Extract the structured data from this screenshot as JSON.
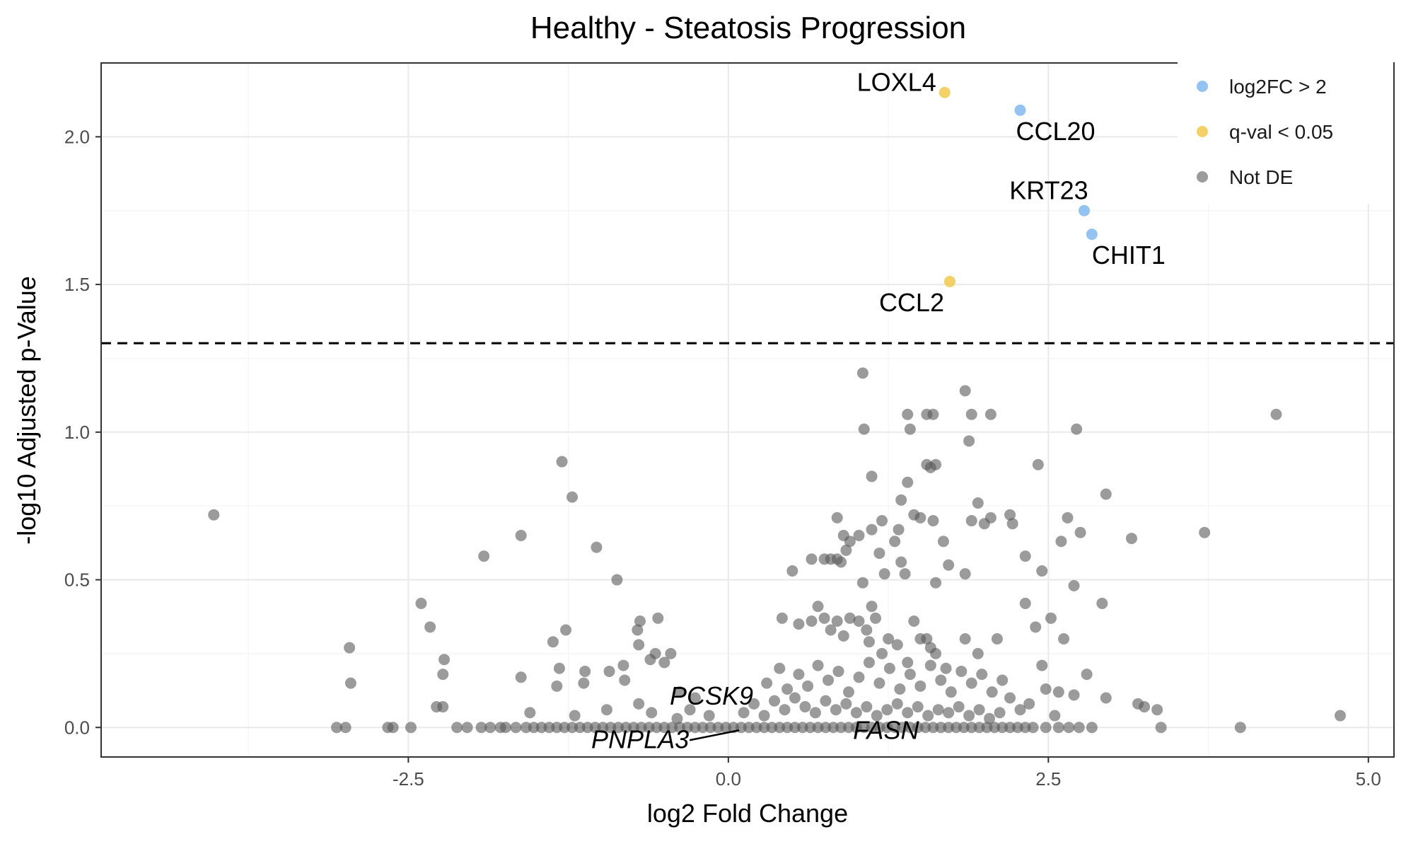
{
  "chart_data": {
    "type": "scatter",
    "title": "Healthy - Steatosis Progression",
    "xlabel": "log2 Fold Change",
    "ylabel": "-log10 Adjusted p-Value",
    "xlim": [
      -4.9,
      5.2
    ],
    "ylim": [
      -0.1,
      2.25
    ],
    "xticks": [
      -2.5,
      0.0,
      2.5,
      5.0
    ],
    "xtick_labels": [
      "-2.5",
      "0.0",
      "2.5",
      "5.0"
    ],
    "yticks": [
      0.0,
      0.5,
      1.0,
      1.5,
      2.0
    ],
    "ytick_labels": [
      "0.0",
      "0.5",
      "1.0",
      "1.5",
      "2.0"
    ],
    "threshold_line": {
      "y": 1.301,
      "style": "dashed"
    },
    "grid": true,
    "legend_position": "top-right",
    "colors": {
      "log2FC > 2": "#7fb8f0",
      "q-val < 0.05": "#f2c94c",
      "Not DE": "#595959"
    },
    "series": [
      {
        "name": "log2FC > 2",
        "points": [
          {
            "x": 2.28,
            "y": 2.09,
            "label": "CCL20"
          },
          {
            "x": 2.78,
            "y": 1.75,
            "label": "KRT23"
          },
          {
            "x": 2.84,
            "y": 1.67,
            "label": "CHIT1"
          }
        ]
      },
      {
        "name": "q-val < 0.05",
        "points": [
          {
            "x": 1.69,
            "y": 2.15,
            "label": "LOXL4"
          },
          {
            "x": 1.73,
            "y": 1.51,
            "label": "CCL2"
          }
        ]
      },
      {
        "name": "Not DE",
        "points": [
          [
            -4.02,
            0.72
          ],
          [
            -2.96,
            0.27
          ],
          [
            -2.95,
            0.15
          ],
          [
            -2.4,
            0.42
          ],
          [
            -2.33,
            0.34
          ],
          [
            -2.22,
            0.23
          ],
          [
            -2.23,
            0.18
          ],
          [
            -2.28,
            0.07
          ],
          [
            -2.23,
            0.07
          ],
          [
            -1.91,
            0.58
          ],
          [
            -1.62,
            0.65
          ],
          [
            -1.62,
            0.17
          ],
          [
            -1.3,
            0.9
          ],
          [
            -1.22,
            0.78
          ],
          [
            -1.37,
            0.29
          ],
          [
            -1.27,
            0.33
          ],
          [
            -1.32,
            0.2
          ],
          [
            -1.34,
            0.14
          ],
          [
            -1.03,
            0.61
          ],
          [
            -0.87,
            0.5
          ],
          [
            -1.12,
            0.19
          ],
          [
            -1.13,
            0.15
          ],
          [
            -0.93,
            0.19
          ],
          [
            -0.82,
            0.21
          ],
          [
            -0.81,
            0.16
          ],
          [
            -0.69,
            0.36
          ],
          [
            -0.71,
            0.33
          ],
          [
            -0.7,
            0.28
          ],
          [
            -0.55,
            0.37
          ],
          [
            -0.57,
            0.25
          ],
          [
            -0.61,
            0.23
          ],
          [
            -0.5,
            0.22
          ],
          [
            -0.45,
            0.25
          ],
          [
            -0.38,
            0.12
          ],
          [
            -0.26,
            0.1
          ],
          [
            -3.06,
            0.0
          ],
          [
            -2.99,
            0.0
          ],
          [
            -2.66,
            0.0
          ],
          [
            -2.62,
            0.0
          ],
          [
            -2.48,
            0.0
          ],
          [
            -2.12,
            0.0
          ],
          [
            -2.04,
            0.0
          ],
          [
            -1.93,
            0.0
          ],
          [
            -1.86,
            0.0
          ],
          [
            -1.78,
            0.0
          ],
          [
            -1.74,
            0.0
          ],
          [
            -1.66,
            0.0
          ],
          [
            -1.58,
            0.0
          ],
          [
            -1.52,
            0.0
          ],
          [
            -1.46,
            0.0
          ],
          [
            -1.4,
            0.0
          ],
          [
            -1.34,
            0.0
          ],
          [
            -1.28,
            0.0
          ],
          [
            -1.22,
            0.0
          ],
          [
            -1.16,
            0.0
          ],
          [
            -1.1,
            0.0
          ],
          [
            -1.04,
            0.0
          ],
          [
            -0.98,
            0.0
          ],
          [
            -0.92,
            0.0
          ],
          [
            -0.86,
            0.0
          ],
          [
            -0.8,
            0.0
          ],
          [
            -0.74,
            0.0
          ],
          [
            -0.68,
            0.0
          ],
          [
            -0.62,
            0.0
          ],
          [
            -0.56,
            0.0
          ],
          [
            -0.5,
            0.0
          ],
          [
            -0.44,
            0.0
          ],
          [
            -0.38,
            0.0
          ],
          [
            -0.32,
            0.0
          ],
          [
            -0.26,
            0.0
          ],
          [
            -0.2,
            0.0
          ],
          [
            -0.14,
            0.0
          ],
          [
            -0.08,
            0.0
          ],
          [
            -0.02,
            0.0
          ],
          [
            -1.55,
            0.05
          ],
          [
            -1.2,
            0.04
          ],
          [
            -0.95,
            0.06
          ],
          [
            -0.7,
            0.08
          ],
          [
            -0.6,
            0.05
          ],
          [
            -0.4,
            0.03
          ],
          [
            -0.3,
            0.06
          ],
          [
            -0.15,
            0.04
          ],
          [
            0.04,
            0.0
          ],
          [
            0.1,
            0.0
          ],
          [
            0.16,
            0.0
          ],
          [
            0.22,
            0.0
          ],
          [
            0.28,
            0.0
          ],
          [
            0.34,
            0.0
          ],
          [
            0.4,
            0.0
          ],
          [
            0.46,
            0.0
          ],
          [
            0.52,
            0.0
          ],
          [
            0.58,
            0.0
          ],
          [
            0.64,
            0.0
          ],
          [
            0.7,
            0.0
          ],
          [
            0.76,
            0.0
          ],
          [
            0.82,
            0.0
          ],
          [
            0.88,
            0.0
          ],
          [
            0.94,
            0.0
          ],
          [
            1.0,
            0.0
          ],
          [
            1.06,
            0.0
          ],
          [
            1.12,
            0.0
          ],
          [
            1.18,
            0.0
          ],
          [
            1.24,
            0.0
          ],
          [
            1.3,
            0.0
          ],
          [
            1.36,
            0.0
          ],
          [
            1.42,
            0.0
          ],
          [
            1.48,
            0.0
          ],
          [
            1.54,
            0.0
          ],
          [
            1.6,
            0.0
          ],
          [
            1.66,
            0.0
          ],
          [
            1.72,
            0.0
          ],
          [
            1.78,
            0.0
          ],
          [
            1.84,
            0.0
          ],
          [
            1.9,
            0.0
          ],
          [
            1.96,
            0.0
          ],
          [
            2.02,
            0.0
          ],
          [
            2.08,
            0.0
          ],
          [
            2.14,
            0.0
          ],
          [
            2.2,
            0.0
          ],
          [
            2.26,
            0.0
          ],
          [
            2.32,
            0.0
          ],
          [
            2.38,
            0.0
          ],
          [
            2.48,
            0.0
          ],
          [
            2.58,
            0.0
          ],
          [
            2.66,
            0.0
          ],
          [
            2.74,
            0.0
          ],
          [
            2.84,
            0.0
          ],
          [
            3.38,
            0.0
          ],
          [
            4.0,
            0.0
          ],
          [
            0.12,
            0.05
          ],
          [
            0.2,
            0.08
          ],
          [
            0.28,
            0.04
          ],
          [
            0.36,
            0.09
          ],
          [
            0.44,
            0.06
          ],
          [
            0.52,
            0.1
          ],
          [
            0.6,
            0.07
          ],
          [
            0.68,
            0.05
          ],
          [
            0.76,
            0.09
          ],
          [
            0.84,
            0.06
          ],
          [
            0.92,
            0.08
          ],
          [
            1.0,
            0.05
          ],
          [
            1.08,
            0.07
          ],
          [
            1.16,
            0.04
          ],
          [
            1.24,
            0.06
          ],
          [
            1.32,
            0.08
          ],
          [
            1.4,
            0.05
          ],
          [
            1.48,
            0.07
          ],
          [
            1.56,
            0.04
          ],
          [
            1.64,
            0.06
          ],
          [
            1.72,
            0.05
          ],
          [
            1.8,
            0.07
          ],
          [
            1.88,
            0.04
          ],
          [
            1.96,
            0.06
          ],
          [
            2.04,
            0.03
          ],
          [
            2.12,
            0.05
          ],
          [
            0.3,
            0.15
          ],
          [
            0.4,
            0.2
          ],
          [
            0.46,
            0.13
          ],
          [
            0.55,
            0.18
          ],
          [
            0.62,
            0.14
          ],
          [
            0.7,
            0.21
          ],
          [
            0.78,
            0.16
          ],
          [
            0.86,
            0.19
          ],
          [
            0.94,
            0.12
          ],
          [
            1.02,
            0.17
          ],
          [
            1.1,
            0.22
          ],
          [
            1.18,
            0.15
          ],
          [
            1.26,
            0.2
          ],
          [
            1.34,
            0.13
          ],
          [
            1.42,
            0.18
          ],
          [
            1.5,
            0.14
          ],
          [
            1.58,
            0.21
          ],
          [
            1.66,
            0.16
          ],
          [
            1.74,
            0.12
          ],
          [
            1.82,
            0.19
          ],
          [
            1.9,
            0.15
          ],
          [
            1.98,
            0.18
          ],
          [
            2.06,
            0.12
          ],
          [
            2.14,
            0.16
          ],
          [
            0.42,
            0.37
          ],
          [
            0.55,
            0.35
          ],
          [
            0.65,
            0.36
          ],
          [
            0.7,
            0.41
          ],
          [
            0.75,
            0.37
          ],
          [
            0.8,
            0.33
          ],
          [
            0.85,
            0.36
          ],
          [
            0.9,
            0.31
          ],
          [
            0.95,
            0.37
          ],
          [
            1.02,
            0.36
          ],
          [
            1.08,
            0.33
          ],
          [
            1.1,
            0.29
          ],
          [
            1.12,
            0.41
          ],
          [
            1.15,
            0.37
          ],
          [
            1.2,
            0.25
          ],
          [
            1.25,
            0.3
          ],
          [
            1.32,
            0.28
          ],
          [
            1.4,
            0.22
          ],
          [
            1.45,
            0.36
          ],
          [
            1.5,
            0.3
          ],
          [
            1.55,
            0.3
          ],
          [
            1.58,
            0.27
          ],
          [
            1.62,
            0.25
          ],
          [
            1.7,
            0.2
          ],
          [
            1.85,
            0.3
          ],
          [
            1.95,
            0.25
          ],
          [
            2.1,
            0.3
          ],
          [
            2.4,
            0.34
          ],
          [
            2.45,
            0.21
          ],
          [
            2.52,
            0.37
          ],
          [
            2.62,
            0.3
          ],
          [
            0.5,
            0.53
          ],
          [
            0.65,
            0.57
          ],
          [
            0.75,
            0.57
          ],
          [
            0.8,
            0.57
          ],
          [
            0.85,
            0.57
          ],
          [
            0.88,
            0.56
          ],
          [
            0.95,
            0.63
          ],
          [
            1.02,
            0.65
          ],
          [
            1.05,
            0.49
          ],
          [
            1.12,
            0.67
          ],
          [
            1.18,
            0.59
          ],
          [
            1.22,
            0.52
          ],
          [
            1.3,
            0.63
          ],
          [
            1.33,
            0.67
          ],
          [
            1.35,
            0.56
          ],
          [
            1.38,
            0.52
          ],
          [
            1.4,
            0.83
          ],
          [
            1.45,
            0.72
          ],
          [
            1.5,
            0.71
          ],
          [
            1.55,
            0.89
          ],
          [
            1.6,
            0.7
          ],
          [
            1.62,
            0.49
          ],
          [
            1.68,
            0.63
          ],
          [
            1.72,
            0.55
          ],
          [
            1.85,
            0.52
          ],
          [
            1.9,
            0.7
          ],
          [
            1.95,
            0.76
          ],
          [
            2.0,
            0.69
          ],
          [
            2.05,
            0.71
          ],
          [
            2.2,
            0.72
          ],
          [
            2.22,
            0.69
          ],
          [
            2.32,
            0.58
          ],
          [
            2.45,
            0.53
          ],
          [
            2.6,
            0.63
          ],
          [
            2.65,
            0.71
          ],
          [
            2.7,
            0.48
          ],
          [
            2.75,
            0.66
          ],
          [
            0.85,
            0.71
          ],
          [
            0.9,
            0.65
          ],
          [
            0.92,
            0.6
          ],
          [
            1.12,
            0.85
          ],
          [
            1.2,
            0.7
          ],
          [
            1.35,
            0.77
          ],
          [
            1.58,
            0.88
          ],
          [
            1.62,
            0.89
          ],
          [
            1.85,
            1.14
          ],
          [
            1.88,
            0.97
          ],
          [
            1.9,
            1.06
          ],
          [
            2.05,
            1.06
          ],
          [
            2.42,
            0.89
          ],
          [
            2.72,
            1.01
          ],
          [
            2.95,
            0.79
          ],
          [
            3.15,
            0.64
          ],
          [
            3.72,
            0.66
          ],
          [
            4.28,
            1.06
          ],
          [
            1.05,
            1.2
          ],
          [
            1.06,
            1.01
          ],
          [
            1.4,
            1.06
          ],
          [
            1.42,
            1.01
          ],
          [
            1.6,
            1.06
          ],
          [
            1.55,
            1.06
          ],
          [
            2.32,
            0.42
          ],
          [
            2.8,
            0.18
          ],
          [
            2.7,
            0.11
          ],
          [
            2.92,
            0.42
          ],
          [
            2.55,
            0.04
          ],
          [
            2.95,
            0.1
          ],
          [
            3.2,
            0.08
          ],
          [
            3.25,
            0.07
          ],
          [
            3.35,
            0.06
          ],
          [
            4.78,
            0.04
          ],
          [
            2.48,
            0.13
          ],
          [
            2.58,
            0.12
          ],
          [
            2.35,
            0.08
          ],
          [
            2.2,
            0.1
          ],
          [
            2.28,
            0.06
          ]
        ]
      }
    ],
    "annotations": [
      {
        "text": "LOXL4",
        "x": 1.69,
        "y": 2.15
      },
      {
        "text": "CCL20",
        "x": 2.28,
        "y": 2.09
      },
      {
        "text": "KRT23",
        "x": 2.78,
        "y": 1.75
      },
      {
        "text": "CHIT1",
        "x": 2.84,
        "y": 1.67
      },
      {
        "text": "CCL2",
        "x": 1.73,
        "y": 1.51
      },
      {
        "text": "PCSK9",
        "x": 0.2,
        "y": 0.06
      },
      {
        "text": "PNPLA3",
        "x": 0.25,
        "y": 0.0
      },
      {
        "text": "FASN",
        "x": 0.95,
        "y": 0.0
      }
    ]
  }
}
